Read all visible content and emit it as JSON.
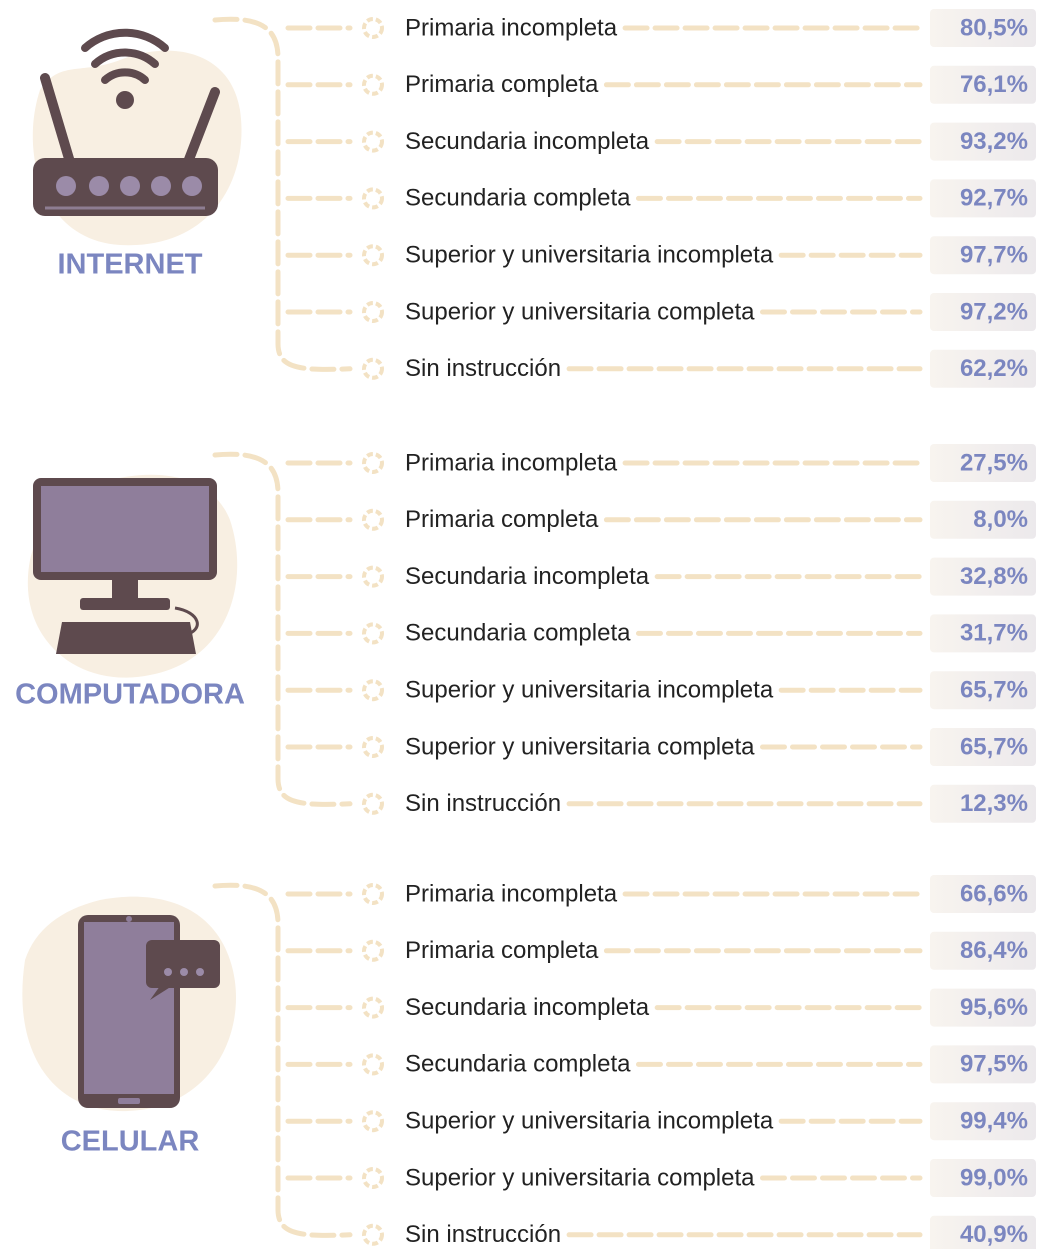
{
  "groups": [
    {
      "title": "INTERNET",
      "items": [
        {
          "label": "Primaria incompleta",
          "value": "80,5%"
        },
        {
          "label": "Primaria completa",
          "value": "76,1%"
        },
        {
          "label": "Secundaria incompleta",
          "value": "93,2%"
        },
        {
          "label": "Secundaria completa",
          "value": "92,7%"
        },
        {
          "label": "Superior y universitaria incompleta",
          "value": "97,7%"
        },
        {
          "label": "Superior y universitaria completa",
          "value": "97,2%"
        },
        {
          "label": "Sin instrucción",
          "value": "62,2%"
        }
      ]
    },
    {
      "title": "COMPUTADORA",
      "items": [
        {
          "label": "Primaria incompleta",
          "value": "27,5%"
        },
        {
          "label": "Primaria completa",
          "value": "8,0%"
        },
        {
          "label": "Secundaria incompleta",
          "value": "32,8%"
        },
        {
          "label": "Secundaria completa",
          "value": "31,7%"
        },
        {
          "label": "Superior y universitaria incompleta",
          "value": "65,7%"
        },
        {
          "label": "Superior y universitaria completa",
          "value": "65,7%"
        },
        {
          "label": "Sin instrucción",
          "value": "12,3%"
        }
      ]
    },
    {
      "title": "CELULAR",
      "items": [
        {
          "label": "Primaria incompleta",
          "value": "66,6%"
        },
        {
          "label": "Primaria completa",
          "value": "86,4%"
        },
        {
          "label": "Secundaria incompleta",
          "value": "95,6%"
        },
        {
          "label": "Secundaria completa",
          "value": "97,5%"
        },
        {
          "label": "Superior y universitaria incompleta",
          "value": "99,4%"
        },
        {
          "label": "Superior y universitaria completa",
          "value": "99,0%"
        },
        {
          "label": "Sin instrucción",
          "value": "40,9%"
        }
      ]
    }
  ]
}
